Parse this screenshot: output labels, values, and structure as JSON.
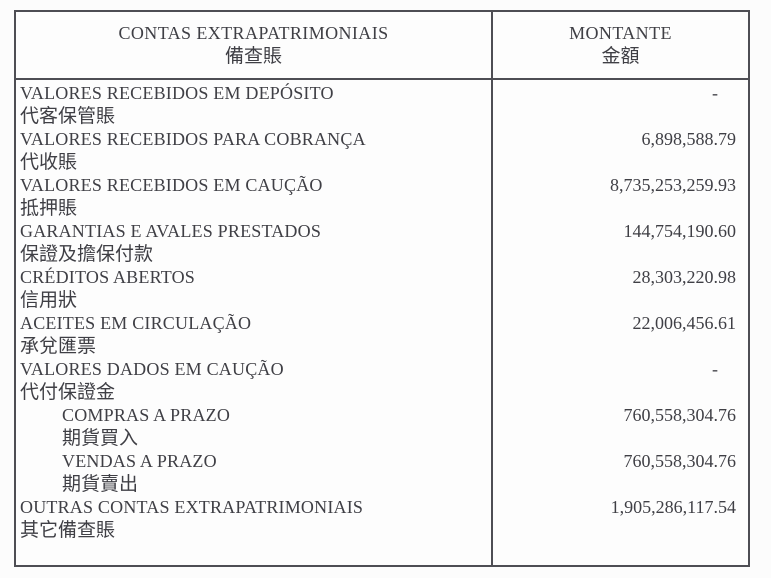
{
  "table": {
    "header": {
      "left": {
        "pt": "CONTAS EXTRAPATRIMONIAIS",
        "zh": "備查賬"
      },
      "right": {
        "pt": "MONTANTE",
        "zh": "金額"
      }
    },
    "rows": [
      {
        "pt": "VALORES RECEBIDOS EM DEPÓSITO",
        "zh": "代客保管賬",
        "value": "-"
      },
      {
        "pt": "VALORES RECEBIDOS PARA COBRANÇA",
        "zh": "代收賬",
        "value": "6,898,588.79"
      },
      {
        "pt": "VALORES RECEBIDOS EM CAUÇÃO",
        "zh": "抵押賬",
        "value": "8,735,253,259.93"
      },
      {
        "pt": "GARANTIAS E AVALES PRESTADOS",
        "zh": "保證及擔保付款",
        "value": "144,754,190.60"
      },
      {
        "pt": "CRÉDITOS ABERTOS",
        "zh": "信用狀",
        "value": "28,303,220.98"
      },
      {
        "pt": "ACEITES EM CIRCULAÇÃO",
        "zh": "承兌匯票",
        "value": "22,006,456.61"
      },
      {
        "pt": "VALORES DADOS EM CAUÇÃO",
        "zh": "代付保證金",
        "value": "-"
      },
      {
        "pt": "COMPRAS A PRAZO",
        "zh": "期貨買入",
        "value": "760,558,304.76",
        "indented": true
      },
      {
        "pt": "VENDAS A PRAZO",
        "zh": "期貨賣出",
        "value": "760,558,304.76",
        "indented": true
      },
      {
        "pt": "OUTRAS CONTAS EXTRAPATRIMONIAIS",
        "zh": "其它備查賬",
        "value": "1,905,286,117.54"
      }
    ]
  },
  "colors": {
    "border": "#4e4e54",
    "text": "#3f3f45",
    "background": "#fcfcfc"
  }
}
